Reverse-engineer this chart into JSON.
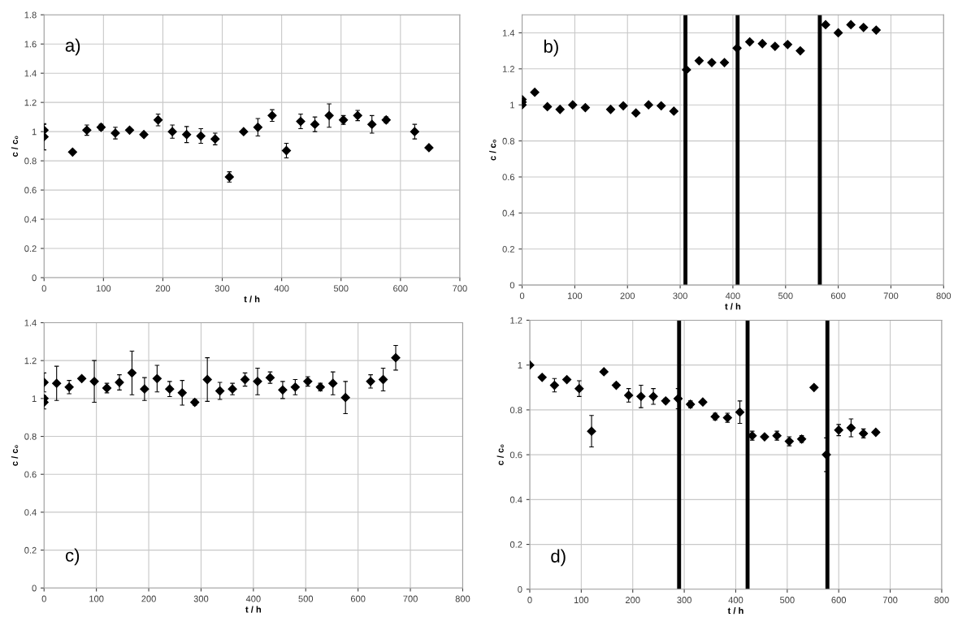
{
  "chart_data": [
    {
      "type": "scatter",
      "xlabel": "t / h",
      "ylabel": "c / c₀",
      "annotations": [
        "a)"
      ],
      "marker": "diamond",
      "grid": true,
      "xlim": [
        0,
        700
      ],
      "ylim": [
        0,
        1.8
      ],
      "xticks": [
        0,
        100,
        200,
        300,
        400,
        500,
        600,
        700
      ],
      "yticks": [
        0,
        0.2,
        0.4,
        0.6,
        0.8,
        1,
        1.2,
        1.4,
        1.6,
        1.8
      ],
      "series": [
        {
          "color": "#000000",
          "x": [
            0,
            0,
            48,
            72,
            96,
            120,
            144,
            168,
            192,
            216,
            240,
            264,
            288,
            312,
            336,
            360,
            384,
            408,
            432,
            456,
            480,
            504,
            528,
            552,
            576,
            624,
            648
          ],
          "values": [
            0.965,
            1.01,
            0.86,
            1.01,
            1.03,
            0.99,
            1.01,
            0.98,
            1.08,
            1.0,
            0.98,
            0.97,
            0.95,
            0.69,
            1.0,
            1.03,
            1.11,
            0.87,
            1.07,
            1.05,
            1.11,
            1.08,
            1.11,
            1.05,
            1.08,
            1.0,
            0.89
          ],
          "errors": [
            0.09,
            0.04,
            0.01,
            0.035,
            0.02,
            0.04,
            null,
            null,
            0.04,
            0.045,
            0.055,
            0.05,
            0.04,
            0.035,
            null,
            0.06,
            0.04,
            0.05,
            0.05,
            0.05,
            0.08,
            0.03,
            0.035,
            0.06,
            0.02,
            0.05,
            null
          ]
        }
      ]
    },
    {
      "type": "scatter",
      "xlabel": "t / h",
      "ylabel": "c / c₀",
      "annotations": [
        "b)"
      ],
      "marker": "diamond",
      "grid": true,
      "xlim": [
        0,
        800
      ],
      "ylim": [
        0,
        1.5
      ],
      "xticks": [
        0,
        100,
        200,
        300,
        400,
        500,
        600,
        700,
        800
      ],
      "yticks": [
        0,
        0.2,
        0.4,
        0.6,
        0.8,
        1,
        1.2,
        1.4
      ],
      "ref_lines": [
        {
          "axis": "x",
          "value": 310,
          "color": "#000000"
        },
        {
          "axis": "x",
          "value": 409,
          "color": "#000000"
        },
        {
          "axis": "x",
          "value": 565,
          "color": "#000000"
        }
      ],
      "series": [
        {
          "color": "#000000",
          "x": [
            0,
            0,
            0,
            24,
            48,
            72,
            96,
            120,
            168,
            192,
            216,
            240,
            264,
            288,
            312,
            336,
            360,
            384,
            408,
            432,
            456,
            480,
            504,
            528,
            576,
            600,
            624,
            648,
            672
          ],
          "values": [
            1.0,
            1.015,
            1.03,
            1.07,
            0.99,
            0.975,
            1.0,
            0.985,
            0.975,
            0.995,
            0.955,
            1.0,
            0.995,
            0.965,
            1.195,
            1.245,
            1.235,
            1.235,
            1.315,
            1.35,
            1.34,
            1.325,
            1.335,
            1.3,
            1.445,
            1.4,
            1.445,
            1.43,
            1.415
          ]
        }
      ]
    },
    {
      "type": "scatter",
      "xlabel": "t / h",
      "ylabel": "c / c₀",
      "annotations": [
        "c)"
      ],
      "marker": "diamond",
      "grid": true,
      "xlim": [
        0,
        800
      ],
      "ylim": [
        0,
        1.4
      ],
      "xticks": [
        0,
        100,
        200,
        300,
        400,
        500,
        600,
        700,
        800
      ],
      "yticks": [
        0,
        0.2,
        0.4,
        0.6,
        0.8,
        1,
        1.2,
        1.4
      ],
      "series": [
        {
          "color": "#000000",
          "x": [
            0,
            0,
            0,
            24,
            48,
            72,
            96,
            120,
            144,
            168,
            192,
            216,
            240,
            264,
            288,
            312,
            336,
            360,
            384,
            408,
            432,
            456,
            480,
            504,
            528,
            552,
            576,
            624,
            648,
            672
          ],
          "values": [
            1.0,
            0.98,
            1.085,
            1.08,
            1.06,
            1.105,
            1.09,
            1.055,
            1.085,
            1.135,
            1.05,
            1.105,
            1.05,
            1.03,
            0.98,
            1.1,
            1.04,
            1.05,
            1.1,
            1.09,
            1.11,
            1.045,
            1.06,
            1.09,
            1.06,
            1.08,
            1.005,
            1.09,
            1.1,
            1.215
          ],
          "errors": [
            null,
            0.035,
            0.05,
            0.09,
            0.035,
            0.01,
            0.11,
            0.025,
            0.04,
            0.115,
            0.06,
            0.07,
            0.04,
            0.065,
            0.015,
            0.115,
            0.045,
            0.03,
            0.035,
            0.07,
            0.03,
            0.045,
            0.04,
            0.025,
            0.02,
            0.06,
            0.085,
            0.035,
            0.06,
            0.065
          ]
        }
      ]
    },
    {
      "type": "scatter",
      "xlabel": "t / h",
      "ylabel": "c / c₀",
      "annotations": [
        "d)"
      ],
      "marker": "diamond",
      "grid": true,
      "xlim": [
        0,
        800
      ],
      "ylim": [
        0,
        1.2
      ],
      "xticks": [
        0,
        100,
        200,
        300,
        400,
        500,
        600,
        700,
        800
      ],
      "yticks": [
        0,
        0.2,
        0.4,
        0.6,
        0.8,
        1,
        1.2
      ],
      "ref_lines": [
        {
          "axis": "x",
          "value": 290,
          "color": "#000000"
        },
        {
          "axis": "x",
          "value": 423,
          "color": "#000000"
        },
        {
          "axis": "x",
          "value": 578,
          "color": "#000000"
        }
      ],
      "series": [
        {
          "color": "#000000",
          "x": [
            0,
            24,
            48,
            72,
            96,
            120,
            144,
            168,
            192,
            216,
            240,
            264,
            288,
            312,
            336,
            360,
            384,
            408,
            432,
            456,
            480,
            504,
            528,
            552,
            576,
            600,
            624,
            648,
            672
          ],
          "values": [
            1.0,
            0.945,
            0.91,
            0.935,
            0.895,
            0.705,
            0.97,
            0.91,
            0.865,
            0.86,
            0.86,
            0.84,
            0.85,
            0.825,
            0.835,
            0.77,
            0.765,
            0.79,
            0.685,
            0.68,
            0.685,
            0.66,
            0.67,
            0.9,
            0.6,
            0.71,
            0.72,
            0.695,
            0.7
          ],
          "errors": [
            null,
            null,
            0.03,
            null,
            0.035,
            0.07,
            null,
            0.01,
            0.03,
            0.05,
            0.035,
            0.01,
            0.045,
            0.015,
            null,
            0.015,
            0.02,
            0.05,
            0.02,
            null,
            0.02,
            0.02,
            0.015,
            null,
            0.075,
            0.025,
            0.04,
            0.02,
            null
          ]
        }
      ]
    }
  ]
}
